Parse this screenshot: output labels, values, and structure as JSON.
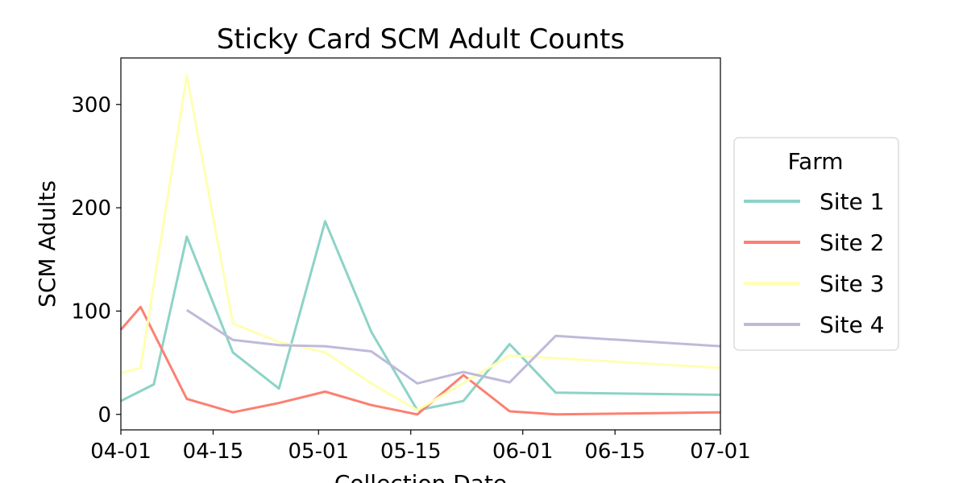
{
  "chart_data": {
    "type": "line",
    "title": "Sticky Card SCM Adult Counts",
    "xlabel": "Collection Date",
    "ylabel": "SCM Adults",
    "xlim": [
      "2023-04-01",
      "2023-07-01"
    ],
    "ylim": [
      -15,
      345
    ],
    "x_ticks": [
      "04-01",
      "04-15",
      "05-01",
      "05-15",
      "06-01",
      "06-15",
      "07-01"
    ],
    "x_tick_dates": [
      "2023-04-01",
      "2023-04-15",
      "2023-05-01",
      "2023-05-15",
      "2023-06-01",
      "2023-06-15",
      "2023-07-01"
    ],
    "y_ticks": [
      0,
      100,
      200,
      300
    ],
    "grid": false,
    "legend": {
      "title": "Farm",
      "placement": "right"
    },
    "series": [
      {
        "name": "Site 1",
        "color": "#8dd3c7",
        "points": [
          [
            "2023-04-01",
            13
          ],
          [
            "2023-04-06",
            29
          ],
          [
            "2023-04-11",
            172
          ],
          [
            "2023-04-18",
            60
          ],
          [
            "2023-04-25",
            25
          ],
          [
            "2023-05-02",
            187
          ],
          [
            "2023-05-09",
            80
          ],
          [
            "2023-05-16",
            4
          ],
          [
            "2023-05-23",
            13
          ],
          [
            "2023-05-30",
            68
          ],
          [
            "2023-06-06",
            21
          ],
          [
            "2023-07-01",
            19
          ]
        ]
      },
      {
        "name": "Site 2",
        "color": "#fb8072",
        "points": [
          [
            "2023-04-01",
            82
          ],
          [
            "2023-04-04",
            104
          ],
          [
            "2023-04-11",
            15
          ],
          [
            "2023-04-18",
            2
          ],
          [
            "2023-04-25",
            11
          ],
          [
            "2023-05-02",
            22
          ],
          [
            "2023-05-09",
            9
          ],
          [
            "2023-05-16",
            0
          ],
          [
            "2023-05-23",
            38
          ],
          [
            "2023-05-30",
            3
          ],
          [
            "2023-06-06",
            0
          ],
          [
            "2023-07-01",
            2
          ]
        ]
      },
      {
        "name": "Site 3",
        "color": "#ffffb3",
        "points": [
          [
            "2023-04-01",
            40
          ],
          [
            "2023-04-04",
            45
          ],
          [
            "2023-04-11",
            328
          ],
          [
            "2023-04-18",
            88
          ],
          [
            "2023-04-25",
            70
          ],
          [
            "2023-05-02",
            60
          ],
          [
            "2023-05-09",
            30
          ],
          [
            "2023-05-16",
            4
          ],
          [
            "2023-05-30",
            57
          ],
          [
            "2023-07-01",
            45
          ]
        ]
      },
      {
        "name": "Site 4",
        "color": "#bebada",
        "points": [
          [
            "2023-04-11",
            101
          ],
          [
            "2023-04-18",
            72
          ],
          [
            "2023-04-25",
            67
          ],
          [
            "2023-05-02",
            66
          ],
          [
            "2023-05-09",
            61
          ],
          [
            "2023-05-16",
            30
          ],
          [
            "2023-05-23",
            41
          ],
          [
            "2023-05-30",
            31
          ],
          [
            "2023-06-06",
            76
          ],
          [
            "2023-07-01",
            66
          ]
        ]
      }
    ]
  }
}
